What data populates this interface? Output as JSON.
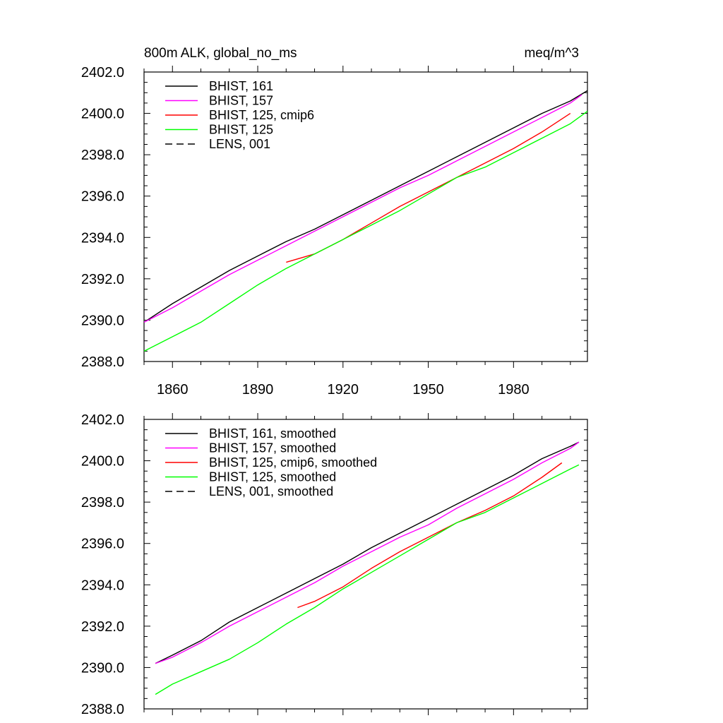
{
  "header": {
    "title_left": "800m ALK, global_no_ms",
    "title_right": "meq/m^3"
  },
  "colors": {
    "BHIST_161": "#000000",
    "BHIST_157": "#ff00ff",
    "BHIST_125_cmip6": "#ff0000",
    "BHIST_125": "#00ff00",
    "LENS_001": "#000000"
  },
  "chart_data": [
    {
      "type": "line",
      "title": "800m ALK, global_no_ms",
      "units": "meq/m^3",
      "xlim": [
        1850,
        2006
      ],
      "ylim": [
        2388.0,
        2402.0
      ],
      "x_ticks": [
        1860,
        1890,
        1920,
        1950,
        1980
      ],
      "x_tick_labels": [
        "1860",
        "1890",
        "1920",
        "1950",
        "1980"
      ],
      "y_ticks": [
        2388.0,
        2390.0,
        2392.0,
        2394.0,
        2396.0,
        2398.0,
        2400.0,
        2402.0
      ],
      "y_tick_labels": [
        "2388.0",
        "2390.0",
        "2392.0",
        "2394.0",
        "2396.0",
        "2398.0",
        "2400.0",
        "2402.0"
      ],
      "legend_position": "top-left",
      "series": [
        {
          "name": "BHIST, 161",
          "color": "#000000",
          "dash": "solid",
          "x": [
            1850,
            1860,
            1870,
            1880,
            1890,
            1900,
            1910,
            1920,
            1930,
            1940,
            1950,
            1960,
            1970,
            1980,
            1990,
            2000,
            2006
          ],
          "y": [
            2389.9,
            2390.8,
            2391.6,
            2392.4,
            2393.1,
            2393.8,
            2394.4,
            2395.1,
            2395.8,
            2396.5,
            2397.2,
            2397.9,
            2398.6,
            2399.3,
            2400.0,
            2400.6,
            2401.1
          ]
        },
        {
          "name": "BHIST, 157",
          "color": "#ff00ff",
          "dash": "solid",
          "x": [
            1850,
            1860,
            1870,
            1880,
            1890,
            1900,
            1910,
            1920,
            1930,
            1940,
            1950,
            1960,
            1970,
            1980,
            1990,
            2000,
            2004
          ],
          "y": [
            2389.9,
            2390.6,
            2391.4,
            2392.2,
            2392.9,
            2393.6,
            2394.3,
            2395.0,
            2395.7,
            2396.4,
            2397.0,
            2397.7,
            2398.4,
            2399.1,
            2399.8,
            2400.5,
            2400.9
          ]
        },
        {
          "name": "BHIST, 125, cmip6",
          "color": "#ff0000",
          "dash": "solid",
          "x": [
            1900,
            1910,
            1920,
            1930,
            1940,
            1950,
            1960,
            1970,
            1980,
            1990,
            2000
          ],
          "y": [
            2392.8,
            2393.2,
            2393.9,
            2394.7,
            2395.5,
            2396.2,
            2396.9,
            2397.6,
            2398.3,
            2399.1,
            2400.0
          ]
        },
        {
          "name": "BHIST, 125",
          "color": "#00ff00",
          "dash": "solid",
          "x": [
            1850,
            1860,
            1870,
            1880,
            1890,
            1900,
            1910,
            1920,
            1930,
            1940,
            1950,
            1960,
            1970,
            1980,
            1990,
            2000,
            2006
          ],
          "y": [
            2388.5,
            2389.2,
            2389.9,
            2390.8,
            2391.7,
            2392.5,
            2393.2,
            2393.9,
            2394.6,
            2395.3,
            2396.1,
            2396.9,
            2397.4,
            2398.1,
            2398.8,
            2399.5,
            2400.1
          ]
        },
        {
          "name": "LENS, 001",
          "color": "#000000",
          "dash": "dashed",
          "x": [],
          "y": []
        }
      ]
    },
    {
      "type": "line",
      "xlim": [
        1850,
        2006
      ],
      "ylim": [
        2388.0,
        2402.0
      ],
      "x_ticks": [
        1860,
        1890,
        1920,
        1950,
        1980
      ],
      "y_ticks": [
        2388.0,
        2390.0,
        2392.0,
        2394.0,
        2396.0,
        2398.0,
        2400.0,
        2402.0
      ],
      "y_tick_labels": [
        "2388.0",
        "2390.0",
        "2392.0",
        "2394.0",
        "2396.0",
        "2398.0",
        "2400.0",
        "2402.0"
      ],
      "legend_position": "top-left",
      "series": [
        {
          "name": "BHIST, 161, smoothed",
          "color": "#000000",
          "dash": "solid",
          "x": [
            1854,
            1860,
            1870,
            1880,
            1890,
            1900,
            1910,
            1920,
            1930,
            1940,
            1950,
            1960,
            1970,
            1980,
            1990,
            2000,
            2003
          ],
          "y": [
            2390.2,
            2390.6,
            2391.3,
            2392.2,
            2392.9,
            2393.6,
            2394.3,
            2395.0,
            2395.8,
            2396.5,
            2397.2,
            2397.9,
            2398.6,
            2399.3,
            2400.1,
            2400.7,
            2400.9
          ]
        },
        {
          "name": "BHIST, 157, smoothed",
          "color": "#ff00ff",
          "dash": "solid",
          "x": [
            1854,
            1860,
            1870,
            1880,
            1890,
            1900,
            1910,
            1920,
            1930,
            1940,
            1950,
            1960,
            1970,
            1980,
            1990,
            2000,
            2003
          ],
          "y": [
            2390.2,
            2390.5,
            2391.2,
            2392.0,
            2392.7,
            2393.4,
            2394.1,
            2394.9,
            2395.6,
            2396.3,
            2396.9,
            2397.7,
            2398.4,
            2399.1,
            2399.9,
            2400.6,
            2400.9
          ]
        },
        {
          "name": "BHIST, 125, cmip6, smoothed",
          "color": "#ff0000",
          "dash": "solid",
          "x": [
            1904,
            1910,
            1920,
            1930,
            1940,
            1950,
            1960,
            1970,
            1980,
            1990,
            1997
          ],
          "y": [
            2392.9,
            2393.2,
            2393.9,
            2394.8,
            2395.6,
            2396.3,
            2397.0,
            2397.6,
            2398.3,
            2399.2,
            2399.9
          ]
        },
        {
          "name": "BHIST, 125, smoothed",
          "color": "#00ff00",
          "dash": "solid",
          "x": [
            1854,
            1860,
            1870,
            1880,
            1890,
            1900,
            1910,
            1920,
            1930,
            1940,
            1950,
            1960,
            1970,
            1980,
            1990,
            2000,
            2003
          ],
          "y": [
            2388.7,
            2389.2,
            2389.8,
            2390.4,
            2391.2,
            2392.1,
            2392.9,
            2393.8,
            2394.6,
            2395.4,
            2396.2,
            2397.0,
            2397.5,
            2398.2,
            2398.9,
            2399.6,
            2399.8
          ]
        },
        {
          "name": "LENS, 001, smoothed",
          "color": "#000000",
          "dash": "dashed",
          "x": [],
          "y": []
        }
      ]
    }
  ]
}
